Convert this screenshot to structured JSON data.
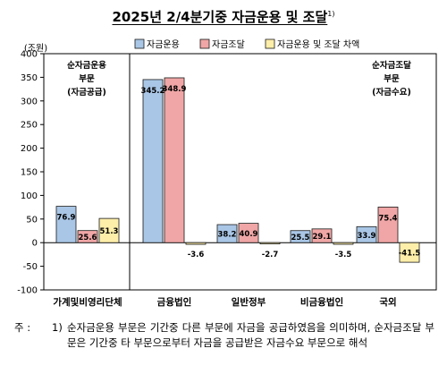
{
  "title": "2025년 2/4분기중 자금운용 및 조달",
  "title_note": "1)",
  "chart_data": {
    "type": "bar",
    "unit_label": "(조원)",
    "ylim": [
      -100,
      400
    ],
    "yticks": [
      -100,
      -50,
      0,
      50,
      100,
      150,
      200,
      250,
      300,
      350,
      400
    ],
    "grid": false,
    "legend_position": "top",
    "categories": [
      "가계및비영리단체",
      "금융법인",
      "일반정부",
      "비금융법인",
      "국외"
    ],
    "series": [
      {
        "name": "자금운용",
        "color": "#a9c6e6",
        "values": [
          76.9,
          345.2,
          38.2,
          25.5,
          33.9
        ]
      },
      {
        "name": "자금조달",
        "color": "#f0a6a6",
        "values": [
          25.6,
          348.9,
          40.9,
          29.1,
          75.4
        ]
      },
      {
        "name": "자금운용 및 조달 차액",
        "color": "#fdeeaa",
        "values": [
          51.3,
          -3.6,
          -2.7,
          -3.5,
          -41.5
        ]
      }
    ],
    "annotations": [
      {
        "id": "left",
        "lines": [
          "순자금운용",
          "부문",
          "(자금공급)"
        ]
      },
      {
        "id": "right",
        "lines": [
          "순자금조달",
          "부문",
          "(자금수요)"
        ]
      }
    ]
  },
  "footnote": {
    "prefix": "주 :",
    "number": "1)",
    "text": "순자금운용 부문은 기간중 다른 부문에 자금을 공급하였음을 의미하며, 순자금조달 부문은 기간중 타 부문으로부터 자금을 공급받은 자금수요 부문으로 해석"
  }
}
